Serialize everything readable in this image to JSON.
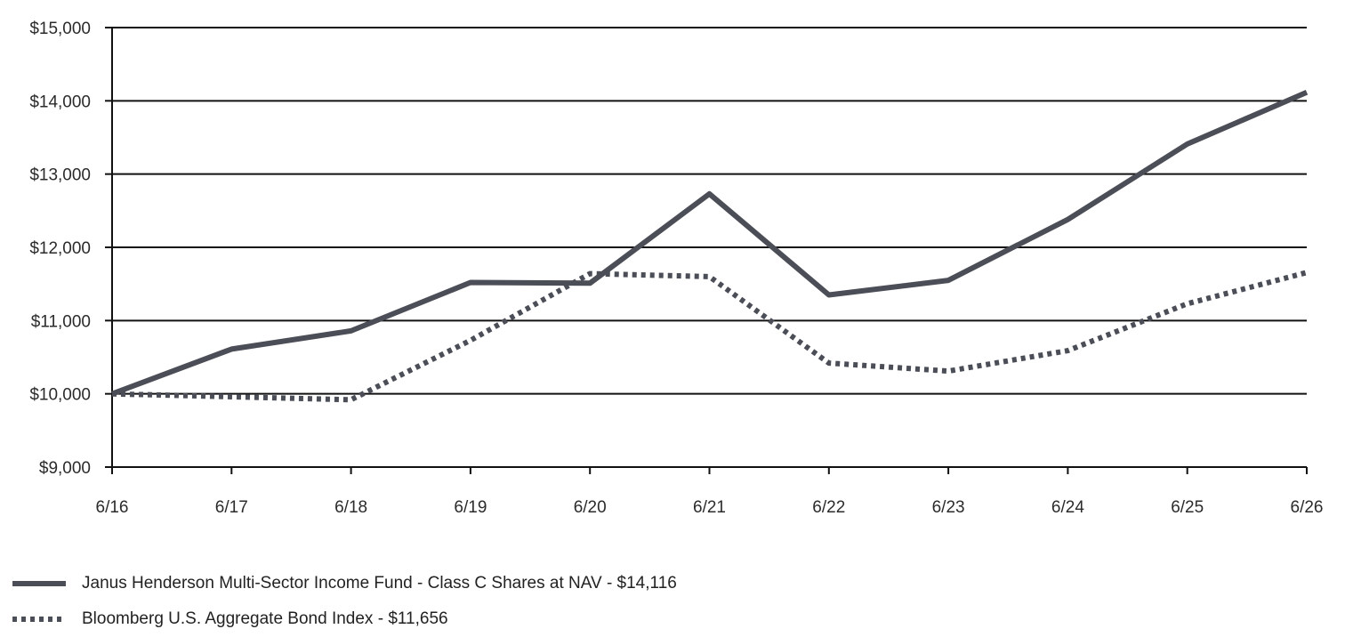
{
  "chart_data": {
    "type": "line",
    "x": [
      "6/16",
      "6/17",
      "6/18",
      "6/19",
      "6/20",
      "6/21",
      "6/22",
      "6/23",
      "6/24",
      "6/25",
      "6/26"
    ],
    "y_ticks": [
      "$9,000",
      "$10,000",
      "$11,000",
      "$12,000",
      "$13,000",
      "$14,000",
      "$15,000"
    ],
    "ylim": [
      9000,
      15000
    ],
    "grid": true,
    "legend_position": "bottom-left",
    "series": [
      {
        "name": "Janus Henderson Multi-Sector Income Fund - Class C Shares at NAV - $14,116",
        "style": "solid",
        "color": "#4b4d57",
        "values": [
          10000,
          10610,
          10860,
          11520,
          11510,
          12730,
          11350,
          11550,
          12380,
          13410,
          14116
        ]
      },
      {
        "name": "Bloomberg U.S. Aggregate Bond Index - $11,656",
        "style": "dotted",
        "color": "#4b4d57",
        "values": [
          10000,
          9960,
          9920,
          10730,
          11640,
          11600,
          10420,
          10310,
          10590,
          11230,
          11656
        ]
      }
    ]
  }
}
